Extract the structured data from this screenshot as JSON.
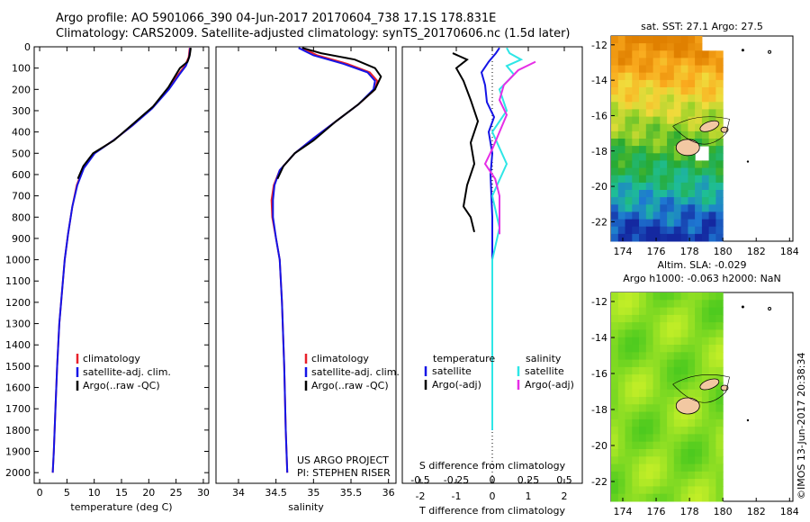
{
  "header": {
    "line1": "Argo profile: AO 5901066_390 04-Jun-2017 20170604_738 17.1S 178.831E",
    "line2": "Climatology: CARS2009. Satellite-adjusted climatology: synTS_20170606.nc (1.5d later)"
  },
  "colors": {
    "climatology": "#e8202a",
    "satellite": "#1414e6",
    "argo": "#000000",
    "sat_sal": "#2ee6e6",
    "argo_sal": "#e62ee6",
    "land": "#f2c8a2"
  },
  "chart_data": [
    {
      "type": "line",
      "name": "temperature-profile",
      "xlabel": "temperature (deg C)",
      "ylabel": "",
      "xlim": [
        -1,
        31
      ],
      "ylim": [
        2050,
        0
      ],
      "xticks": [
        0,
        5,
        10,
        15,
        20,
        25,
        30
      ],
      "xtick_labels": [
        "0",
        "5",
        "10",
        "15",
        "20",
        "25",
        "30"
      ],
      "yticks": [
        0,
        100,
        200,
        300,
        400,
        500,
        600,
        700,
        800,
        900,
        1000,
        1100,
        1200,
        1300,
        1400,
        1500,
        1600,
        1700,
        1800,
        1900,
        2000
      ],
      "ytick_labels": [
        "0",
        "100",
        "200",
        "300",
        "400",
        "500",
        "600",
        "700",
        "800",
        "900",
        "1000",
        "1100",
        "1200",
        "1300",
        "1400",
        "1500",
        "1600",
        "1700",
        "1800",
        "1900",
        "2000"
      ],
      "legend": [
        "climatology",
        "satellite-adj. clim.",
        "Argo(..raw -QC)"
      ],
      "series": [
        {
          "name": "climatology",
          "color": "#e8202a",
          "points": [
            [
              27.5,
              5
            ],
            [
              27.3,
              50
            ],
            [
              26.6,
              90
            ],
            [
              25.4,
              130
            ],
            [
              23.5,
              200
            ],
            [
              20.5,
              290
            ],
            [
              17.0,
              370
            ],
            [
              13.5,
              440
            ],
            [
              10.0,
              500
            ],
            [
              8.0,
              570
            ],
            [
              6.8,
              650
            ],
            [
              6.0,
              750
            ],
            [
              5.2,
              880
            ],
            [
              4.6,
              1000
            ],
            [
              4.1,
              1150
            ],
            [
              3.6,
              1300
            ],
            [
              3.2,
              1500
            ],
            [
              2.9,
              1700
            ],
            [
              2.6,
              1900
            ],
            [
              2.4,
              2000
            ]
          ]
        },
        {
          "name": "satellite-adj. clim.",
          "color": "#1414e6",
          "points": [
            [
              27.6,
              5
            ],
            [
              27.4,
              50
            ],
            [
              26.8,
              90
            ],
            [
              25.6,
              130
            ],
            [
              23.7,
              200
            ],
            [
              20.6,
              290
            ],
            [
              17.0,
              370
            ],
            [
              13.5,
              440
            ],
            [
              10.1,
              500
            ],
            [
              8.1,
              570
            ],
            [
              6.9,
              650
            ],
            [
              6.0,
              750
            ],
            [
              5.2,
              880
            ],
            [
              4.6,
              1000
            ],
            [
              4.1,
              1150
            ],
            [
              3.6,
              1300
            ],
            [
              3.2,
              1500
            ],
            [
              2.9,
              1700
            ],
            [
              2.6,
              1900
            ],
            [
              2.4,
              2000
            ]
          ]
        },
        {
          "name": "Argo(..raw -QC)",
          "color": "#000000",
          "points": [
            [
              27.7,
              5
            ],
            [
              27.5,
              40
            ],
            [
              27.1,
              70
            ],
            [
              25.7,
              100
            ],
            [
              25.0,
              130
            ],
            [
              23.6,
              190
            ],
            [
              20.8,
              280
            ],
            [
              17.2,
              360
            ],
            [
              13.6,
              440
            ],
            [
              9.8,
              500
            ],
            [
              8.0,
              560
            ],
            [
              7.0,
              620
            ]
          ]
        }
      ]
    },
    {
      "type": "line",
      "name": "salinity-profile",
      "xlabel": "salinity",
      "ylabel": "",
      "xlim": [
        33.7,
        36.1
      ],
      "ylim": [
        2050,
        0
      ],
      "xticks": [
        34,
        34.5,
        35,
        35.5,
        36
      ],
      "xtick_labels": [
        "34",
        "34.5",
        "35",
        "35.5",
        "36"
      ],
      "legend": [
        "climatology",
        "satellite-adj. clim.",
        "Argo(..raw -QC)"
      ],
      "series": [
        {
          "name": "climatology",
          "color": "#e8202a",
          "points": [
            [
              34.85,
              5
            ],
            [
              35.05,
              40
            ],
            [
              35.45,
              80
            ],
            [
              35.75,
              120
            ],
            [
              35.85,
              160
            ],
            [
              35.82,
              200
            ],
            [
              35.6,
              270
            ],
            [
              35.3,
              350
            ],
            [
              35.0,
              430
            ],
            [
              34.75,
              500
            ],
            [
              34.55,
              580
            ],
            [
              34.47,
              650
            ],
            [
              34.44,
              720
            ],
            [
              34.45,
              800
            ],
            [
              34.5,
              900
            ],
            [
              34.55,
              1000
            ],
            [
              34.58,
              1200
            ],
            [
              34.61,
              1500
            ],
            [
              34.63,
              1800
            ],
            [
              34.65,
              2000
            ]
          ]
        },
        {
          "name": "satellite-adj. clim.",
          "color": "#1414e6",
          "points": [
            [
              34.8,
              5
            ],
            [
              35.0,
              40
            ],
            [
              35.4,
              80
            ],
            [
              35.72,
              120
            ],
            [
              35.82,
              160
            ],
            [
              35.8,
              200
            ],
            [
              35.6,
              270
            ],
            [
              35.3,
              350
            ],
            [
              35.0,
              430
            ],
            [
              34.75,
              500
            ],
            [
              34.55,
              580
            ],
            [
              34.48,
              650
            ],
            [
              34.46,
              720
            ],
            [
              34.46,
              800
            ],
            [
              34.5,
              900
            ],
            [
              34.55,
              1000
            ],
            [
              34.58,
              1200
            ],
            [
              34.61,
              1500
            ],
            [
              34.63,
              1800
            ],
            [
              34.65,
              2000
            ]
          ]
        },
        {
          "name": "Argo(..raw -QC)",
          "color": "#000000",
          "points": [
            [
              34.85,
              5
            ],
            [
              35.1,
              30
            ],
            [
              35.55,
              60
            ],
            [
              35.82,
              100
            ],
            [
              35.9,
              140
            ],
            [
              35.82,
              200
            ],
            [
              35.6,
              270
            ],
            [
              35.3,
              350
            ],
            [
              35.0,
              440
            ],
            [
              34.75,
              500
            ],
            [
              34.6,
              560
            ],
            [
              34.52,
              620
            ]
          ]
        }
      ]
    },
    {
      "type": "line",
      "name": "difference-profile",
      "xlabel": "T difference from climatology",
      "x2label": "S difference from climatology",
      "xlim": [
        -2.5,
        2.5
      ],
      "ylim": [
        2050,
        0
      ],
      "xticks": [
        -2,
        -1,
        0,
        1,
        2
      ],
      "xtick_labels": [
        "-2",
        "-1",
        "0",
        "1",
        "2"
      ],
      "x2ticks": [
        -0.5,
        -0.25,
        0,
        0.25,
        0.5
      ],
      "x2tick_labels": [
        "-0.5",
        "-0.25",
        "0",
        "0.25",
        "0.5"
      ],
      "legend_temperature_title": "temperature",
      "legend_salinity_title": "salinity",
      "legend": [
        "satellite",
        "Argo(-adj)",
        "satellite",
        "Argo(-adj)"
      ],
      "series": [
        {
          "name": "T satellite",
          "color": "#1414e6",
          "points": [
            [
              0.2,
              5
            ],
            [
              0.1,
              30
            ],
            [
              -0.1,
              70
            ],
            [
              -0.3,
              120
            ],
            [
              -0.2,
              180
            ],
            [
              -0.15,
              260
            ],
            [
              0.05,
              330
            ],
            [
              -0.1,
              400
            ],
            [
              0.0,
              500
            ],
            [
              -0.05,
              600
            ],
            [
              0.0,
              800
            ],
            [
              0.0,
              1000
            ],
            [
              0.0,
              1400
            ],
            [
              0.0,
              1800
            ]
          ]
        },
        {
          "name": "T Argo(-adj)",
          "color": "#000000",
          "points": [
            [
              -1.1,
              30
            ],
            [
              -0.7,
              60
            ],
            [
              -1.0,
              100
            ],
            [
              -0.8,
              160
            ],
            [
              -0.6,
              250
            ],
            [
              -0.4,
              350
            ],
            [
              -0.6,
              450
            ],
            [
              -0.5,
              550
            ],
            [
              -0.7,
              650
            ],
            [
              -0.8,
              750
            ],
            [
              -0.6,
              800
            ],
            [
              -0.5,
              870
            ]
          ]
        },
        {
          "name": "S satellite",
          "color": "#2ee6e6",
          "points": [
            [
              0.1,
              5
            ],
            [
              0.12,
              30
            ],
            [
              0.2,
              60
            ],
            [
              0.1,
              90
            ],
            [
              0.15,
              130
            ],
            [
              0.05,
              200
            ],
            [
              0.1,
              300
            ],
            [
              0.0,
              400
            ],
            [
              0.1,
              550
            ],
            [
              0.0,
              700
            ],
            [
              0.05,
              850
            ],
            [
              0.0,
              1000
            ],
            [
              0.0,
              1400
            ],
            [
              0.0,
              1800
            ]
          ]
        },
        {
          "name": "S Argo(-adj)",
          "color": "#e62ee6",
          "points": [
            [
              0.3,
              70
            ],
            [
              0.18,
              110
            ],
            [
              0.08,
              180
            ],
            [
              0.05,
              250
            ],
            [
              0.1,
              320
            ],
            [
              0.05,
              400
            ],
            [
              0.0,
              480
            ],
            [
              -0.05,
              550
            ],
            [
              0.02,
              620
            ],
            [
              0.05,
              700
            ],
            [
              0.05,
              880
            ]
          ]
        }
      ]
    },
    {
      "type": "heatmap",
      "name": "sst-map",
      "title": "sat. SST: 27.1  Argo: 27.5",
      "xlim": [
        173.3,
        184.2
      ],
      "ylim": [
        -23.1,
        -11.5
      ],
      "xticks": [
        174,
        176,
        178,
        180,
        182,
        184
      ],
      "xtick_labels": [
        "174",
        "176",
        "178",
        "180",
        "182",
        "184"
      ],
      "yticks": [
        -12,
        -14,
        -16,
        -18,
        -20,
        -22
      ],
      "ytick_labels": [
        "-12",
        "-14",
        "-16",
        "-18",
        "-20",
        "-22"
      ],
      "data_extent_lon": [
        173.3,
        180.0
      ],
      "argo_position": [
        178.831,
        -17.1
      ]
    },
    {
      "type": "heatmap",
      "name": "sla-map",
      "title_line1": "Altim. SLA: -0.029",
      "title_line2": "Argo h1000: -0.063 h2000: NaN",
      "xlim": [
        173.3,
        184.2
      ],
      "ylim": [
        -23.1,
        -11.5
      ],
      "xticks": [
        174,
        176,
        178,
        180,
        182,
        184
      ],
      "xtick_labels": [
        "174",
        "176",
        "178",
        "180",
        "182",
        "184"
      ],
      "yticks": [
        -12,
        -14,
        -16,
        -18,
        -20,
        -22
      ],
      "ytick_labels": [
        "-12",
        "-14",
        "-16",
        "-18",
        "-20",
        "-22"
      ],
      "data_extent_lon": [
        173.3,
        180.0
      ]
    }
  ],
  "annotations": {
    "project_line1": "US ARGO PROJECT",
    "project_line2": "PI: STEPHEN RISER",
    "credit": "©IMOS 13-Jun-2017 20:38:34"
  }
}
